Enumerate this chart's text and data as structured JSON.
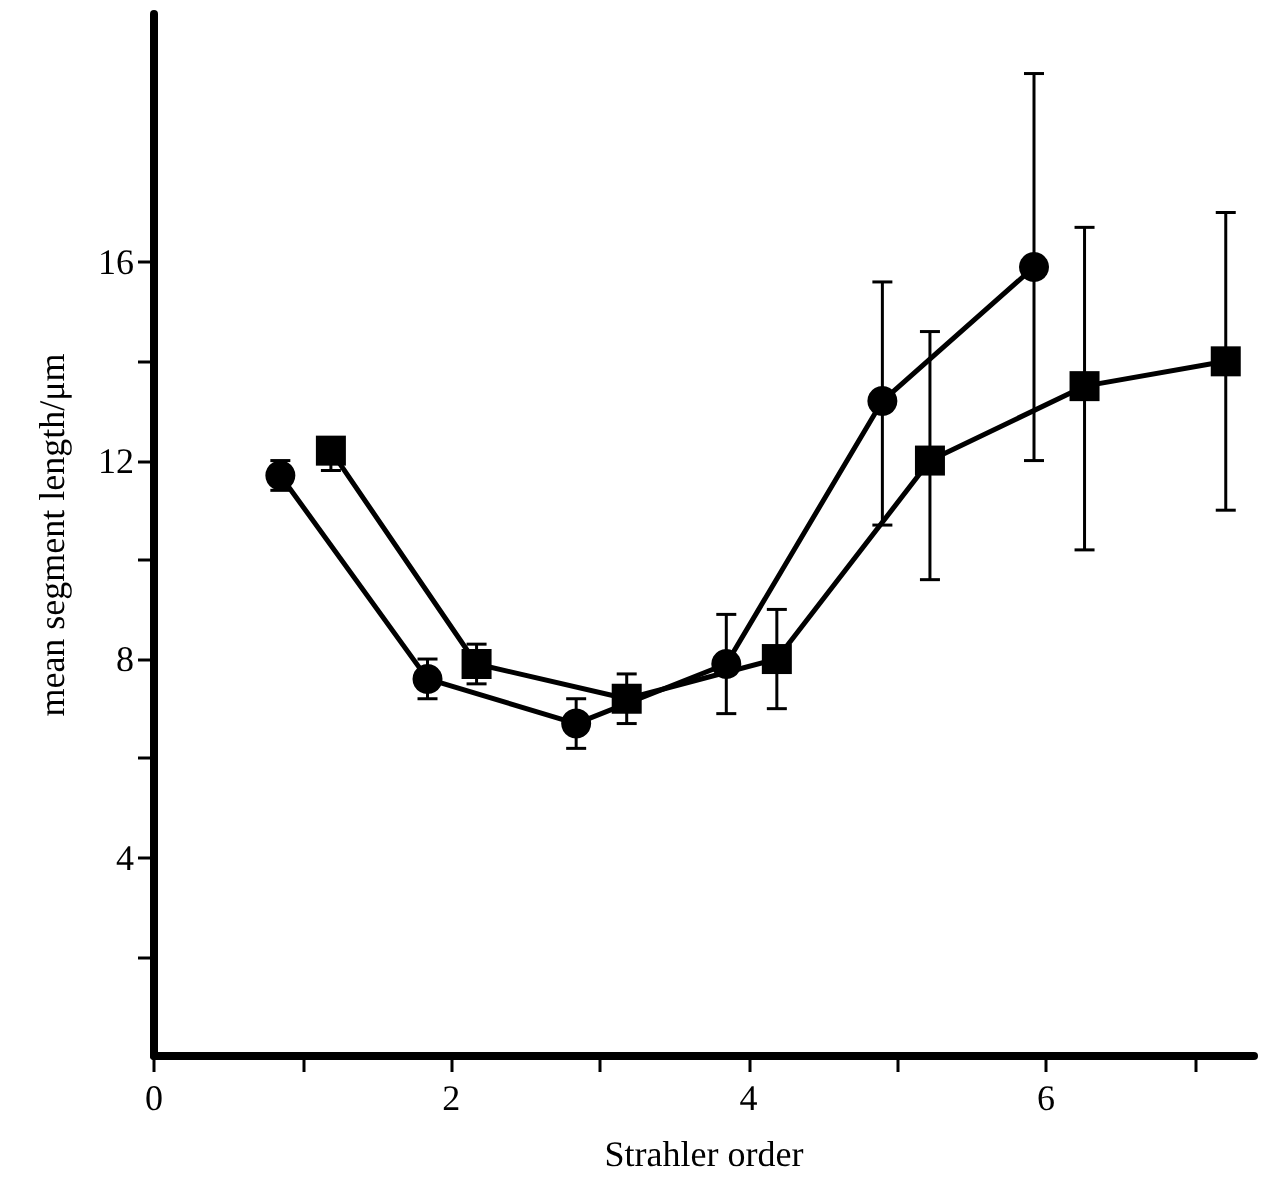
{
  "chart_data": {
    "type": "line",
    "xlabel": "Strahler order",
    "ylabel": "mean segment length/μm",
    "xlim": [
      0,
      7.4
    ],
    "ylim": [
      0,
      21
    ],
    "xticks": [
      0,
      {
        "value": 1,
        "label": null
      },
      2,
      {
        "value": 3,
        "label": null
      },
      4,
      {
        "value": 5,
        "label": null
      },
      6,
      {
        "value": 7,
        "label": null
      }
    ],
    "yticks": [
      {
        "value": 2,
        "label": null
      },
      4,
      {
        "value": 6,
        "label": null
      },
      8,
      {
        "value": 10,
        "label": null
      },
      12,
      {
        "value": 14,
        "label": null
      },
      16
    ],
    "grid": false,
    "line_style": "solid",
    "series": [
      {
        "color": "#000000",
        "marker": "circle",
        "x": [
          0.85,
          1.84,
          2.84,
          3.85,
          4.9,
          5.92
        ],
        "values": [
          11.7,
          7.6,
          6.7,
          7.9,
          13.2,
          15.9
        ],
        "errors": [
          [
            11.4,
            12.0
          ],
          [
            7.2,
            8.0
          ],
          [
            6.2,
            7.2
          ],
          [
            6.9,
            8.9
          ],
          [
            10.7,
            15.6
          ],
          [
            12.0,
            19.8
          ]
        ]
      },
      {
        "color": "#000000",
        "marker": "square",
        "x": [
          1.19,
          2.17,
          3.18,
          4.19,
          5.22,
          6.26,
          7.21
        ],
        "values": [
          12.2,
          7.9,
          7.2,
          8.0,
          12.0,
          13.5,
          14.0
        ],
        "errors": [
          [
            11.8,
            12.4
          ],
          [
            7.5,
            8.3
          ],
          [
            6.7,
            7.7
          ],
          [
            7.0,
            9.0
          ],
          [
            9.6,
            14.6
          ],
          [
            10.2,
            16.7
          ],
          [
            11.0,
            17.0
          ]
        ]
      }
    ]
  }
}
